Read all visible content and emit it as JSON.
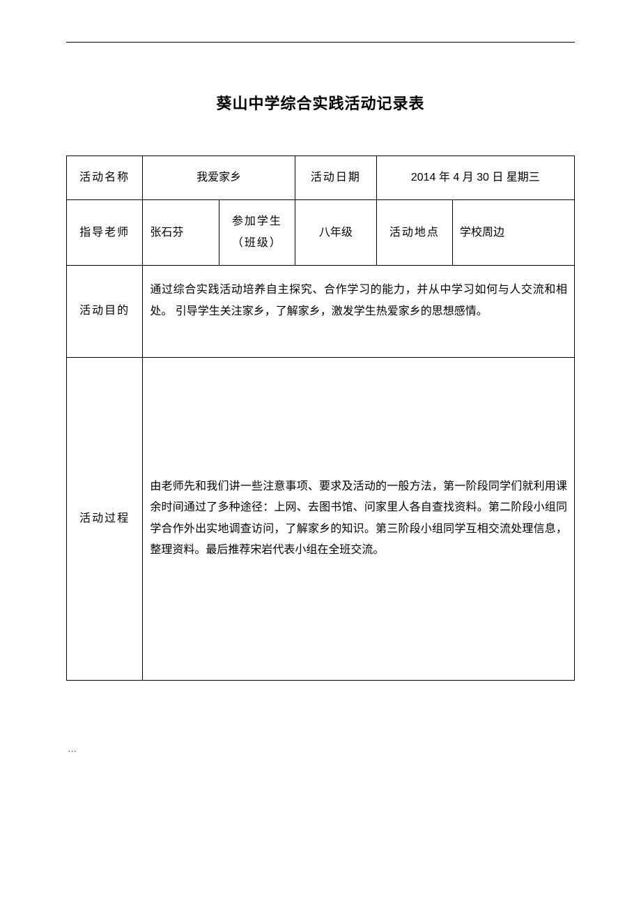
{
  "title": "葵山中学综合实践活动记录表",
  "labels": {
    "activity_name": "活动名称",
    "activity_date": "活动日期",
    "instructor": "指导老师",
    "participants": "参加学生（班级）",
    "grade_label": "八年级",
    "location_label": "活动地点",
    "purpose": "活动目的",
    "process": "活动过程"
  },
  "values": {
    "activity_name": "我爱家乡",
    "activity_date": "2014 年 4 月 30 日 星期三",
    "instructor": "张石芬",
    "grade": "八年级",
    "location": "学校周边",
    "purpose": "通过综合实践活动培养自主探究、合作学习的能力，并从中学习如何与人交流和相处。 引导学生关注家乡，了解家乡，激发学生热爱家乡的思想感情。",
    "process": "由老师先和我们讲一些注意事项、要求及活动的一般方法，第一阶段同学们就利用课余时间通过了多种途径：上网、去图书馆、问家里人各自查找资料。第二阶段小组同学合作外出实地调查访问，了解家乡的知识。第三阶段小组同学互相交流处理信息，整理资料。最后推荐宋岩代表小组在全班交流。"
  },
  "footer": "…",
  "colors": {
    "text": "#000000",
    "border": "#000000",
    "background": "#ffffff"
  },
  "font": {
    "title_size_pt": 16,
    "body_size_pt": 12,
    "family": "SimSun"
  }
}
